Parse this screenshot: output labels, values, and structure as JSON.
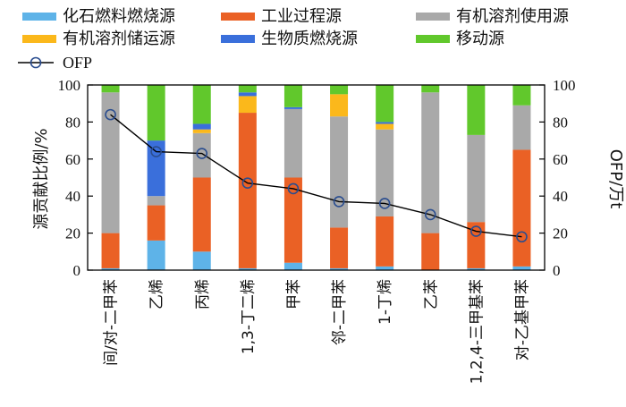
{
  "chart_data": {
    "type": "bar",
    "stacked": true,
    "categories": [
      "间/对-二甲苯",
      "乙烯",
      "丙烯",
      "1,3-丁二烯",
      "甲苯",
      "邻-二甲苯",
      "1-丁烯",
      "乙苯",
      "1,2,4-三甲基苯",
      "对-乙基甲苯"
    ],
    "series": [
      {
        "name": "化石燃料燃烧源",
        "color": "#5eb3e8",
        "values": [
          1,
          16,
          10,
          1,
          4,
          1,
          2,
          0,
          1,
          2
        ]
      },
      {
        "name": "工业过程源",
        "color": "#ea6125",
        "values": [
          19,
          19,
          40,
          84,
          46,
          22,
          27,
          20,
          25,
          63
        ]
      },
      {
        "name": "有机溶剂使用源",
        "color": "#a9a9a9",
        "values": [
          76,
          5,
          24,
          0,
          37,
          60,
          47,
          76,
          47,
          24
        ]
      },
      {
        "name": "有机溶剂储运源",
        "color": "#fbb81b",
        "values": [
          0,
          0,
          2,
          9,
          0,
          12,
          3,
          0,
          0,
          0
        ]
      },
      {
        "name": "生物质燃烧源",
        "color": "#3a6fdb",
        "values": [
          0,
          30,
          3,
          2,
          1,
          0,
          1,
          0,
          0,
          0
        ]
      },
      {
        "name": "移动源",
        "color": "#61c82c",
        "values": [
          4,
          30,
          21,
          4,
          12,
          5,
          20,
          4,
          27,
          11
        ]
      }
    ],
    "line": {
      "name": "OFP",
      "color": "#2a4d8f",
      "values": [
        84,
        64,
        63,
        47,
        44,
        37,
        36,
        30,
        21,
        18
      ]
    },
    "ylabel": "源贡献比例/%",
    "ylabel_right": "OFP/万t",
    "ylim": [
      0,
      100
    ],
    "ylim_right": [
      0,
      100
    ],
    "yticks": [
      "0",
      "20",
      "40",
      "60",
      "80",
      "100"
    ],
    "yticks_right": [
      "0",
      "20",
      "40",
      "60",
      "80",
      "100"
    ],
    "legend_position": "top"
  }
}
